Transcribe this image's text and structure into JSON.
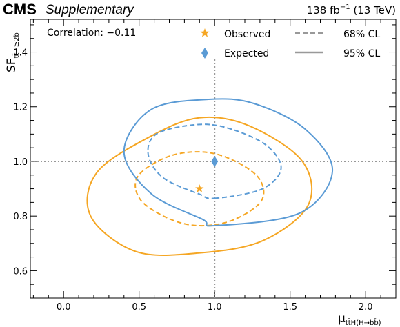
{
  "header": {
    "experiment": "CMS",
    "tag": "Supplementary",
    "lumi_prefix": "138 fb",
    "lumi_exp": "−1",
    "lumi_energy": " (13 TeV)"
  },
  "annotation": {
    "correlation": "Correlation: −0.11"
  },
  "axis_labels": {
    "x_main": "μ",
    "x_sub": "tt̄H(H→bb̄)",
    "y_main": "SF",
    "y_sub": "tt̄+≥2b"
  },
  "legend": {
    "observed": "Observed",
    "expected": "Expected",
    "cl68": "68% CL",
    "cl95": "95% CL"
  },
  "colors": {
    "observed": "#f5a623",
    "expected": "#5b9bd5",
    "legend_line": "#999999",
    "reference": "#999999"
  },
  "chart_data": {
    "type": "scatter",
    "xlim": [
      -0.22,
      2.2
    ],
    "ylim": [
      0.5,
      1.52
    ],
    "x_ticks": [
      0.0,
      0.5,
      1.0,
      1.5,
      2.0
    ],
    "y_ticks": [
      0.6,
      0.8,
      1.0,
      1.2,
      1.4
    ],
    "x_tick_labels": [
      "0.0",
      "0.5",
      "1.0",
      "1.5",
      "2.0"
    ],
    "y_tick_labels": [
      "0.6",
      "0.8",
      "1.0",
      "1.2",
      "1.4"
    ],
    "reference_point": {
      "x": 1.0,
      "y": 1.0
    },
    "points": [
      {
        "name": "Observed",
        "x": 0.9,
        "y": 0.9,
        "marker": "star"
      },
      {
        "name": "Expected",
        "x": 1.0,
        "y": 1.0,
        "marker": "diamond"
      }
    ],
    "contours": [
      {
        "series": "Observed",
        "cl": "68%",
        "style": "dashed",
        "x": [
          0.9,
          1.12,
          1.31,
          1.29,
          1.1,
          0.9,
          0.68,
          0.49,
          0.51,
          0.7
        ],
        "y": [
          0.765,
          0.785,
          0.856,
          0.941,
          1.01,
          1.035,
          1.015,
          0.944,
          0.859,
          0.79
        ]
      },
      {
        "series": "Observed",
        "cl": "95%",
        "style": "solid",
        "x": [
          0.9,
          1.32,
          1.62,
          1.58,
          1.23,
          0.9,
          0.57,
          0.22,
          0.18,
          0.48
        ],
        "y": [
          0.665,
          0.71,
          0.841,
          1.001,
          1.13,
          1.16,
          1.09,
          0.959,
          0.799,
          0.67
        ]
      },
      {
        "series": "Expected",
        "cl": "68%",
        "style": "dashed",
        "x": [
          1.0,
          1.31,
          1.44,
          1.34,
          1.1,
          0.89,
          0.62,
          0.56,
          0.66,
          0.9
        ],
        "y": [
          0.865,
          0.898,
          0.974,
          1.06,
          1.12,
          1.135,
          1.102,
          1.026,
          0.94,
          0.88
        ]
      },
      {
        "series": "Expected",
        "cl": "95%",
        "style": "solid",
        "x": [
          1.0,
          1.56,
          1.78,
          1.6,
          1.26,
          0.96,
          0.58,
          0.4,
          0.58,
          0.92
        ],
        "y": [
          0.765,
          0.81,
          0.964,
          1.118,
          1.212,
          1.227,
          1.19,
          1.036,
          0.882,
          0.788
        ]
      }
    ]
  }
}
